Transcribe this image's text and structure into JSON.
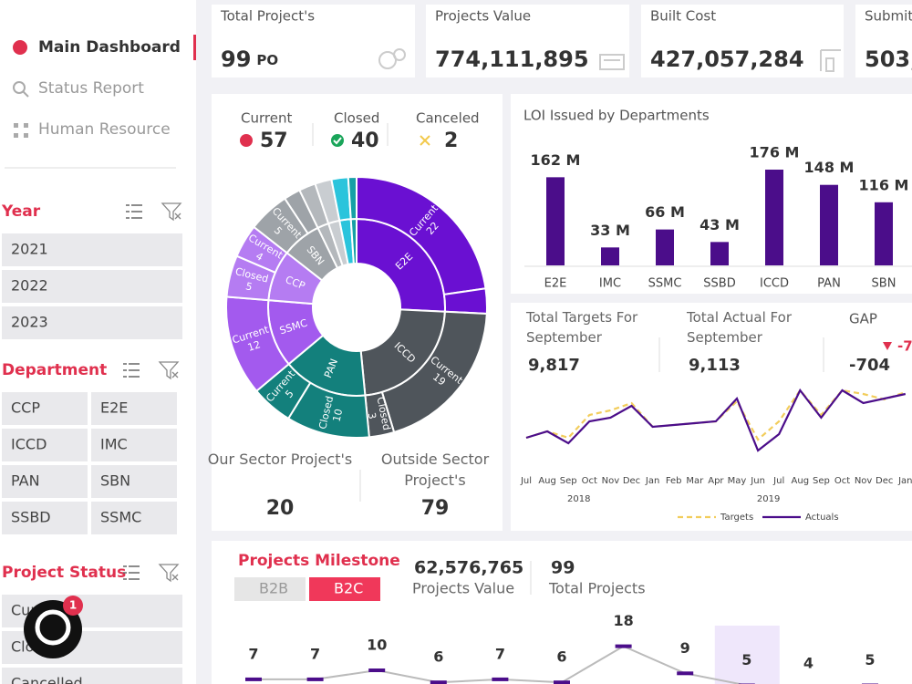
{
  "sidebar": {
    "nav": [
      "Main Dashboard",
      "Status Report",
      "Human Resource"
    ],
    "filters": [
      {
        "title": "Year",
        "items": [
          "2021",
          "2022",
          "2023"
        ]
      },
      {
        "title": "Department",
        "items": [
          "CCP",
          "E2E",
          "ICCD",
          "IMC",
          "PAN",
          "SBN",
          "SSBD",
          "SSMC"
        ]
      },
      {
        "title": "Project Status",
        "items": [
          "Current",
          "Closed",
          "Cancelled"
        ]
      }
    ]
  },
  "chat_badge": "1",
  "kpis": [
    {
      "label": "Total Project's",
      "value": "99",
      "unit": "PO"
    },
    {
      "label": "Projects Value",
      "value": "774,111,895"
    },
    {
      "label": "Built Cost",
      "value": "427,057,284"
    },
    {
      "label": "Submit",
      "value": "503,"
    }
  ],
  "status_summary": {
    "items": [
      {
        "label": "Current",
        "value": 57
      },
      {
        "label": "Closed",
        "value": 40
      },
      {
        "label": "Canceled",
        "value": 2
      }
    ],
    "sunburst": {
      "type": "sunburst",
      "departments": [
        {
          "label": "E2E",
          "color": "#6a10d2",
          "segments": [
            {
              "status": "Current",
              "value": 22
            },
            {
              "status": null,
              "value": 3
            }
          ]
        },
        {
          "label": "ICCD",
          "color": "#4f555b",
          "segments": [
            {
              "status": "Current",
              "value": 19
            },
            {
              "status": "Closed",
              "value": 3
            }
          ]
        },
        {
          "label": "PAN",
          "color": "#13807c",
          "segments": [
            {
              "status": "Closed",
              "value": 10
            },
            {
              "status": "Current",
              "value": 5
            }
          ]
        },
        {
          "label": "SSMC",
          "color": "#a35aee",
          "segments": [
            {
              "status": "Current",
              "value": 12
            }
          ]
        },
        {
          "label": "CCP",
          "color": "#b57cf2",
          "segments": [
            {
              "status": "Closed",
              "value": 5
            },
            {
              "status": "Current",
              "value": 4
            }
          ]
        },
        {
          "label": "SBN",
          "color": "#9ea3a8",
          "segments": [
            {
              "status": "Current",
              "value": 5
            },
            {
              "status": null,
              "value": 2
            }
          ]
        },
        {
          "label": null,
          "color": "#b4b8bc",
          "segments": [
            {
              "status": null,
              "value": 2
            }
          ]
        },
        {
          "label": null,
          "color": "#c9cdd1",
          "segments": [
            {
              "status": null,
              "value": 2
            }
          ]
        },
        {
          "label": null,
          "color": "#2bc4dc",
          "segments": [
            {
              "status": null,
              "value": 2
            }
          ]
        },
        {
          "label": null,
          "color": "#16a0a6",
          "segments": [
            {
              "status": null,
              "value": 1
            }
          ]
        }
      ]
    },
    "sector": [
      {
        "label": "Our Sector Project's",
        "value": 20
      },
      {
        "label": "Outside Sector Project's",
        "value": 79
      }
    ]
  },
  "loi_chart": {
    "type": "bar",
    "title": "LOI Issued by Departments",
    "categories": [
      "E2E",
      "IMC",
      "SSMC",
      "SSBD",
      "ICCD",
      "PAN",
      "SBN"
    ],
    "values": [
      162,
      33,
      66,
      43,
      176,
      148,
      116
    ],
    "value_labels": [
      "162 M",
      "33 M",
      "66 M",
      "43 M",
      "176 M",
      "148 M",
      "116 M"
    ],
    "color": "#4b0d8a"
  },
  "targets": {
    "items": [
      {
        "label": "Total Targets For September",
        "value": "9,817"
      },
      {
        "label": "Total Actual For September",
        "value": "9,113"
      }
    ],
    "gap_label": "GAP",
    "gap": "-704",
    "gap_change": "-7"
  },
  "trend_chart": {
    "type": "line",
    "categories": [
      "Jul",
      "Aug",
      "Sep",
      "Oct",
      "Nov",
      "Dec",
      "Jan",
      "Feb",
      "Mar",
      "Apr",
      "May",
      "Jun",
      "Jul",
      "Aug",
      "Sep",
      "Oct",
      "Nov",
      "Dec",
      "Jan"
    ],
    "year_labels": [
      "2018",
      "2019"
    ],
    "series": [
      {
        "name": "Targets",
        "color": "#f2cd5c",
        "dashed": true,
        "values": [
          20,
          27,
          20,
          45,
          50,
          58,
          32,
          34,
          36,
          38,
          60,
          18,
          38,
          72,
          45,
          72,
          68,
          62,
          70
        ]
      },
      {
        "name": "Actuals",
        "color": "#4b0d8a",
        "dashed": false,
        "values": [
          20,
          27,
          14,
          38,
          42,
          55,
          32,
          34,
          36,
          38,
          63,
          6,
          24,
          72,
          42,
          72,
          58,
          63,
          68
        ]
      }
    ]
  },
  "milestone": {
    "title": "Projects Milestone",
    "tabs": [
      "B2B",
      "B2C"
    ],
    "active_tab": 1,
    "stats": [
      {
        "value": "62,576,765",
        "label": "Projects Value"
      },
      {
        "value": "99",
        "label": "Total Projects"
      }
    ],
    "chart": {
      "type": "line",
      "values": [
        7,
        7,
        10,
        6,
        7,
        6,
        18,
        9,
        5,
        4,
        5
      ],
      "line_color": "#bbbbbb",
      "marker_color": "#4b0d8a",
      "highlight": 8
    }
  }
}
